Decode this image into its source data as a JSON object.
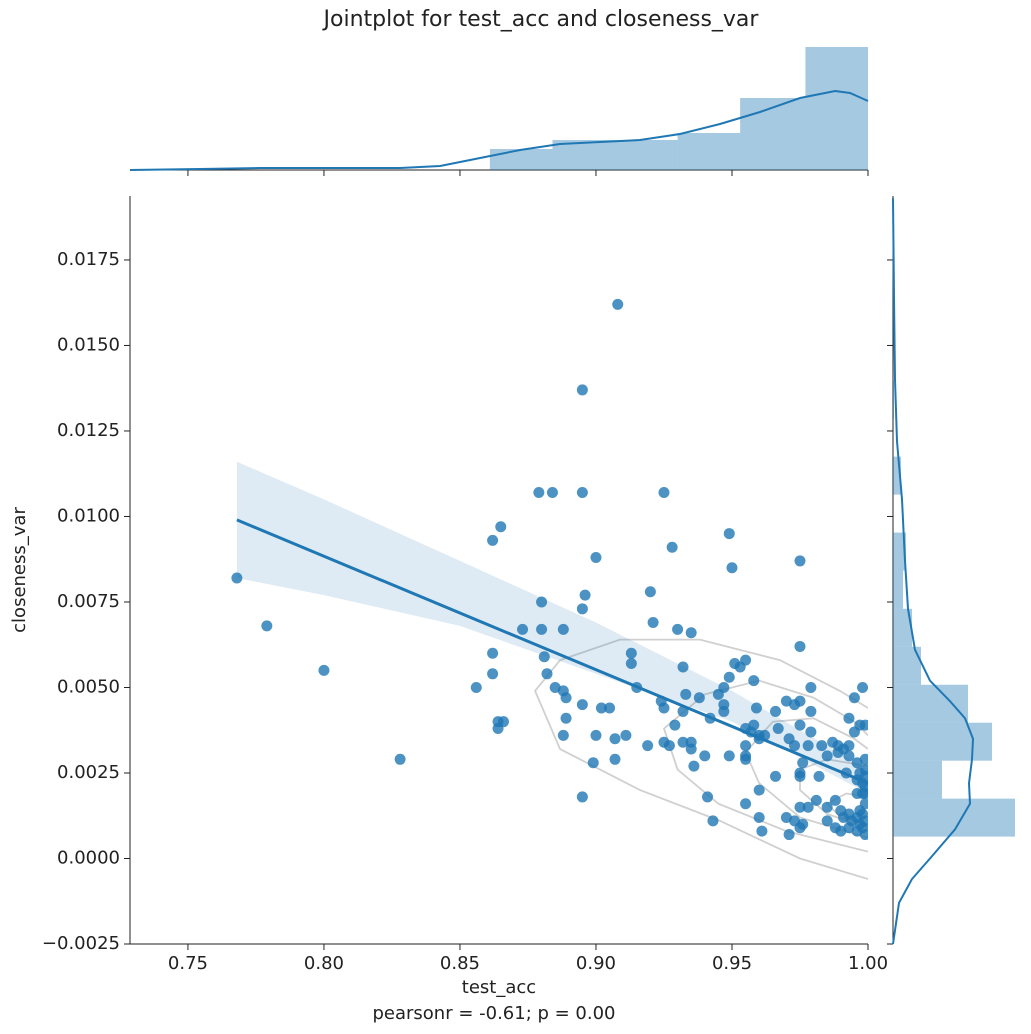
{
  "chart_data": [
    {
      "type": "scatter",
      "title": "Jointplot for test_acc and closeness_var",
      "xlabel": "test_acc",
      "ylabel": "closeness_var",
      "annotation": "pearsonr = -0.61; p = 0.00",
      "color": "#1f77b4",
      "contour_color": "#d0d0d0",
      "xlim": [
        0.7287,
        1.0
      ],
      "ylim": [
        -0.0025,
        0.01937
      ],
      "xticks": [
        {
          "value": 0.75,
          "label": "0.75"
        },
        {
          "value": 0.8,
          "label": "0.80"
        },
        {
          "value": 0.85,
          "label": "0.85"
        },
        {
          "value": 0.9,
          "label": "0.90"
        },
        {
          "value": 0.95,
          "label": "0.95"
        },
        {
          "value": 1.0,
          "label": "1.00"
        }
      ],
      "yticks": [
        {
          "value": -0.0025,
          "label": "−0.0025"
        },
        {
          "value": 0,
          "label": "0.0000"
        },
        {
          "value": 0.0025,
          "label": "0.0025"
        },
        {
          "value": 0.005,
          "label": "0.0050"
        },
        {
          "value": 0.0075,
          "label": "0.0075"
        },
        {
          "value": 0.01,
          "label": "0.0100"
        },
        {
          "value": 0.0125,
          "label": "0.0125"
        },
        {
          "value": 0.015,
          "label": "0.0150"
        },
        {
          "value": 0.0175,
          "label": "0.0175"
        }
      ],
      "x": [
        0.768,
        0.779,
        0.8,
        0.828,
        0.908,
        0.895,
        0.879,
        0.884,
        0.895,
        0.925,
        0.865,
        0.862,
        0.949,
        0.928,
        0.9,
        0.95,
        0.975,
        0.92,
        0.896,
        0.88,
        0.895,
        0.921,
        0.873,
        0.88,
        0.888,
        0.93,
        0.935,
        0.975,
        0.862,
        0.913,
        0.881,
        0.913,
        0.932,
        0.951,
        0.955,
        0.953,
        0.862,
        0.882,
        0.958,
        0.949,
        0.856,
        0.885,
        0.915,
        0.947,
        0.979,
        0.998,
        0.888,
        0.889,
        0.933,
        0.938,
        0.945,
        0.995,
        0.895,
        0.924,
        0.925,
        0.932,
        0.947,
        0.947,
        0.902,
        0.905,
        0.959,
        0.966,
        0.97,
        0.973,
        0.975,
        0.979,
        0.864,
        0.866,
        0.889,
        0.942,
        0.864,
        0.929,
        0.955,
        0.958,
        0.957,
        0.96,
        0.962,
        0.967,
        0.975,
        0.979,
        0.993,
        0.997,
        0.999,
        0.995,
        0.888,
        0.9,
        0.911,
        0.907,
        0.925,
        0.927,
        0.932,
        0.935,
        0.935,
        0.955,
        0.96,
        0.971,
        0.973,
        0.978,
        0.983,
        0.987,
        0.989,
        0.993,
        0.919,
        0.936,
        0.94,
        0.949,
        0.955,
        0.955,
        0.985,
        0.989,
        0.991,
        0.993,
        0.996,
        0.999,
        0.899,
        0.907,
        0.966,
        0.975,
        0.975,
        0.982,
        0.997,
        0.999,
        0.996,
        0.999,
        0.96,
        0.895,
        0.941,
        0.955,
        0.981,
        0.988,
        0.996,
        0.998,
        0.975,
        0.978,
        0.985,
        0.99,
        0.993,
        0.997,
        0.999,
        0.96,
        0.97,
        0.973,
        0.976,
        0.985,
        0.991,
        0.994,
        0.996,
        0.998,
        0.999,
        0.943,
        0.971,
        0.961,
        0.975,
        0.988,
        0.99,
        0.993,
        0.996,
        0.998,
        0.999,
        0.997,
        0.999,
        0.998,
        0.999,
        0.976,
        0.992
      ],
      "values": [
        0.0082,
        0.0068,
        0.0055,
        0.0029,
        0.0162,
        0.0137,
        0.0107,
        0.0107,
        0.0107,
        0.0107,
        0.0097,
        0.0093,
        0.0095,
        0.0091,
        0.0088,
        0.0085,
        0.0087,
        0.0078,
        0.0077,
        0.0075,
        0.0073,
        0.0069,
        0.0067,
        0.0067,
        0.0067,
        0.0067,
        0.0066,
        0.0062,
        0.006,
        0.006,
        0.0059,
        0.0057,
        0.0056,
        0.0057,
        0.0058,
        0.0056,
        0.0054,
        0.0054,
        0.0052,
        0.0053,
        0.005,
        0.005,
        0.005,
        0.005,
        0.005,
        0.005,
        0.0049,
        0.0047,
        0.0048,
        0.0047,
        0.0048,
        0.0047,
        0.0045,
        0.0046,
        0.0044,
        0.0043,
        0.0045,
        0.0043,
        0.0044,
        0.0044,
        0.0044,
        0.0043,
        0.0046,
        0.0045,
        0.0046,
        0.0043,
        0.004,
        0.004,
        0.0041,
        0.0041,
        0.0038,
        0.0039,
        0.0038,
        0.0039,
        0.0037,
        0.0036,
        0.0036,
        0.0038,
        0.0039,
        0.0037,
        0.0041,
        0.0039,
        0.0039,
        0.0037,
        0.0036,
        0.0036,
        0.0036,
        0.0035,
        0.0034,
        0.0033,
        0.0034,
        0.0034,
        0.0032,
        0.0033,
        0.0035,
        0.0035,
        0.0033,
        0.0033,
        0.0033,
        0.0034,
        0.0033,
        0.0033,
        0.0033,
        0.0027,
        0.003,
        0.003,
        0.0029,
        0.003,
        0.003,
        0.0031,
        0.0032,
        0.003,
        0.0028,
        0.0029,
        0.0028,
        0.0029,
        0.0024,
        0.0025,
        0.0024,
        0.0024,
        0.0025,
        0.0026,
        0.0023,
        0.0021,
        0.002,
        0.0018,
        0.0018,
        0.0016,
        0.0017,
        0.0017,
        0.0019,
        0.0019,
        0.0015,
        0.0015,
        0.0015,
        0.0014,
        0.0013,
        0.0014,
        0.0016,
        0.0012,
        0.0012,
        0.0011,
        0.001,
        0.0011,
        0.0012,
        0.0011,
        0.0012,
        0.0013,
        0.0011,
        0.0011,
        0.0007,
        0.0008,
        0.0009,
        0.0009,
        0.0008,
        0.0009,
        0.0008,
        0.0009,
        0.0007,
        0.001,
        0.0019,
        0.0022,
        0.0024,
        0.0028,
        0.0025
      ],
      "regression": {
        "x": [
          0.768,
          1.0
        ],
        "values": [
          0.0099,
          0.0022
        ],
        "ci_x": [
          0.768,
          0.8,
          0.85,
          0.9,
          0.95,
          1.0
        ],
        "ci_upper": [
          0.0116,
          0.0105,
          0.0087,
          0.0069,
          0.0049,
          0.0026
        ],
        "ci_lower": [
          0.0082,
          0.0077,
          0.0068,
          0.0054,
          0.004,
          0.0019
        ]
      },
      "contours": [
        {
          "x": [
            1.0,
            0.975,
            0.9456,
            0.9162,
            0.8868,
            0.8776,
            0.8868,
            0.9088,
            0.9382,
            0.9676,
            0.9897,
            1.0
          ],
          "values": [
            -0.0006,
            0.0,
            0.0011,
            0.002,
            0.0032,
            0.0049,
            0.0058,
            0.0064,
            0.0064,
            0.0058,
            0.0049,
            0.0044
          ]
        },
        {
          "x": [
            1.0,
            0.97,
            0.945,
            0.93,
            0.925,
            0.94,
            0.96,
            0.98,
            0.995,
            1.0
          ],
          "values": [
            0.0002,
            0.0008,
            0.0016,
            0.0026,
            0.0038,
            0.0048,
            0.0052,
            0.0047,
            0.004,
            0.0036
          ]
        },
        {
          "x": [
            1.0,
            0.975,
            0.96,
            0.955,
            0.965,
            0.98,
            0.995,
            1.0
          ],
          "values": [
            0.0006,
            0.0012,
            0.0022,
            0.0031,
            0.004,
            0.0041,
            0.0035,
            0.0032
          ]
        },
        {
          "x": [
            1.0,
            0.985,
            0.975,
            0.975,
            0.985,
            1.0
          ],
          "values": [
            0.0009,
            0.0013,
            0.002,
            0.0026,
            0.0029,
            0.0027
          ]
        },
        {
          "x": [
            1.0,
            0.99,
            0.985,
            0.992,
            1.0
          ],
          "values": [
            0.001,
            0.0012,
            0.0016,
            0.0019,
            0.0018
          ]
        }
      ]
    },
    {
      "type": "histogram",
      "color": "#1f77b4",
      "ylim": [
        0,
        123
      ],
      "bins": [
        0.861,
        0.884,
        0.907,
        0.93,
        0.953,
        0.977,
        1.0
      ],
      "values": [
        21,
        30,
        30,
        37,
        72,
        123
      ],
      "kde": {
        "x": [
          0.7287,
          0.7544,
          0.7765,
          0.8022,
          0.828,
          0.8427,
          0.8574,
          0.8721,
          0.8868,
          0.9015,
          0.9162,
          0.9309,
          0.9456,
          0.9603,
          0.975,
          0.9879,
          0.9934,
          1.0
        ],
        "values": [
          0,
          1,
          2,
          2,
          2,
          4,
          12,
          20,
          26,
          28,
          30,
          36,
          46,
          58,
          72,
          79,
          77,
          69
        ]
      }
    },
    {
      "type": "histogram",
      "orientation": "horizontal",
      "color": "#1f77b4",
      "xlim": [
        0,
        122
      ],
      "bins": [
        0.00064,
        0.00175,
        0.00286,
        0.00397,
        0.00508,
        0.00619,
        0.0073,
        0.00842,
        0.00953,
        0.01064,
        0.01175,
        0.01286,
        0.01397,
        0.01508,
        0.01619
      ],
      "values": [
        122,
        49,
        99,
        75,
        28,
        19,
        10,
        13,
        0,
        8,
        0,
        1,
        0,
        1
      ],
      "kde": {
        "x": [
          -0.0025,
          -0.0013,
          -0.0006,
          0,
          0.00085,
          0.0016,
          0.0022,
          0.0029,
          0.0035,
          0.0041,
          0.0046,
          0.0052,
          0.0061,
          0.0073,
          0.0087,
          0.0105,
          0.0122,
          0.014,
          0.0164,
          0.0193
        ],
        "values": [
          0,
          6,
          19,
          37,
          62,
          77,
          76,
          79,
          80,
          72,
          57,
          37,
          22,
          15,
          12,
          9,
          4,
          2,
          1,
          0
        ]
      }
    }
  ]
}
